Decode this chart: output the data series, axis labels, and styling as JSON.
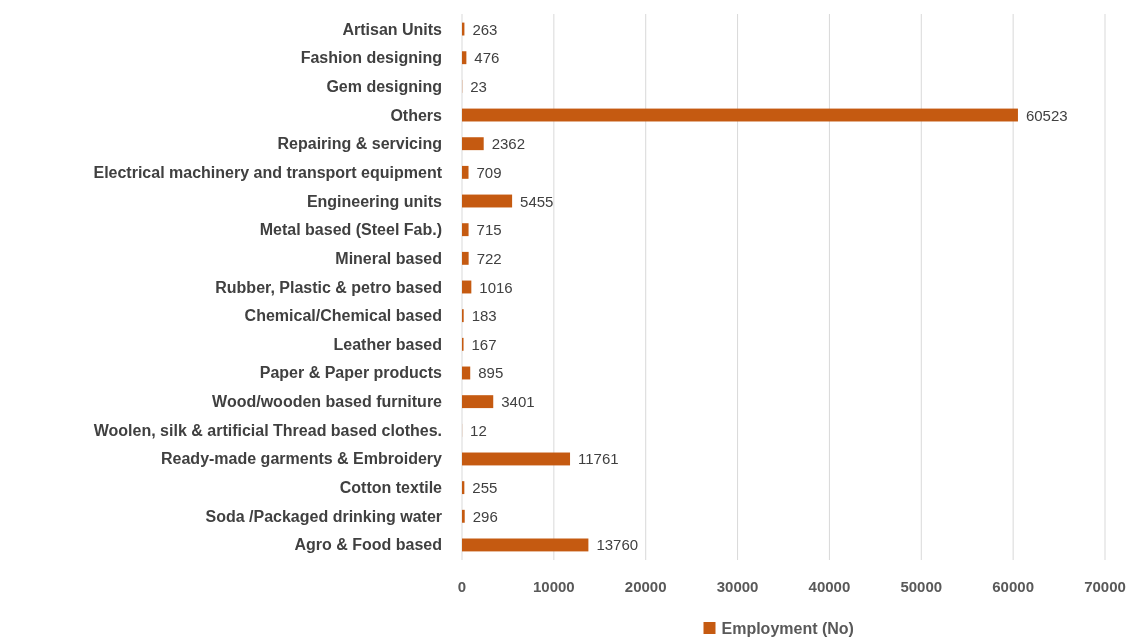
{
  "chart_data": {
    "type": "bar",
    "orientation": "horizontal",
    "categories": [
      "Artisan Units",
      "Fashion designing",
      "Gem designing",
      "Others",
      "Repairing & servicing",
      "Electrical machinery and transport equipment",
      "Engineering units",
      "Metal based (Steel Fab.)",
      "Mineral based",
      "Rubber, Plastic & petro based",
      "Chemical/Chemical based",
      "Leather based",
      "Paper & Paper products",
      "Wood/wooden based furniture",
      "Woolen, silk & artificial Thread based clothes.",
      "Ready-made garments & Embroidery",
      "Cotton textile",
      "Soda /Packaged drinking water",
      "Agro & Food based"
    ],
    "series": [
      {
        "name": "Employment (No)",
        "color": "#c55a11",
        "values": [
          263,
          476,
          23,
          60523,
          2362,
          709,
          5455,
          715,
          722,
          1016,
          183,
          167,
          895,
          3401,
          12,
          11761,
          255,
          296,
          13760
        ]
      }
    ],
    "xlim": [
      0,
      70000
    ],
    "xticks": [
      0,
      10000,
      20000,
      30000,
      40000,
      50000,
      60000,
      70000
    ],
    "grid": "x",
    "legend": "bottom",
    "data_labels": true
  }
}
